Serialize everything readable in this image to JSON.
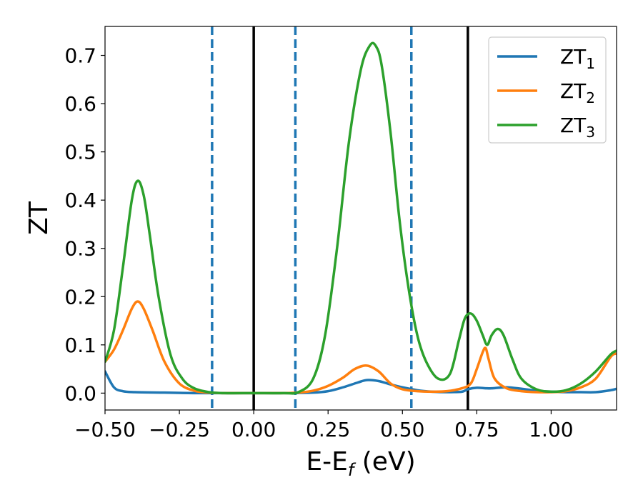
{
  "chart_data": {
    "type": "line",
    "title": "",
    "xlabel": "E-E",
    "xlabel_subscript": "f",
    "xlabel_suffix": " (eV)",
    "ylabel": "ZT",
    "xlim": [
      -0.5,
      1.22
    ],
    "ylim": [
      -0.035,
      0.76
    ],
    "grid": false,
    "legend_position": "top-right",
    "x_ticks": [
      {
        "value": -0.5,
        "label": "−0.50"
      },
      {
        "value": -0.25,
        "label": "−0.25"
      },
      {
        "value": 0.0,
        "label": "0.00"
      },
      {
        "value": 0.25,
        "label": "0.25"
      },
      {
        "value": 0.5,
        "label": "0.50"
      },
      {
        "value": 0.75,
        "label": "0.75"
      },
      {
        "value": 1.0,
        "label": "1.00"
      }
    ],
    "y_ticks": [
      {
        "value": 0.0,
        "label": "0.0"
      },
      {
        "value": 0.1,
        "label": "0.1"
      },
      {
        "value": 0.2,
        "label": "0.2"
      },
      {
        "value": 0.3,
        "label": "0.3"
      },
      {
        "value": 0.4,
        "label": "0.4"
      },
      {
        "value": 0.5,
        "label": "0.5"
      },
      {
        "value": 0.6,
        "label": "0.6"
      },
      {
        "value": 0.7,
        "label": "0.7"
      }
    ],
    "vertical_lines": [
      {
        "x": -0.14,
        "style": "dashed",
        "color": "#1f77b4"
      },
      {
        "x": 0.0,
        "style": "solid",
        "color": "#000000"
      },
      {
        "x": 0.14,
        "style": "dashed",
        "color": "#1f77b4"
      },
      {
        "x": 0.53,
        "style": "dashed",
        "color": "#1f77b4"
      },
      {
        "x": 0.72,
        "style": "solid",
        "color": "#000000"
      }
    ],
    "series": [
      {
        "name": "ZT",
        "subscript": "1",
        "color": "#1f77b4",
        "x": [
          -0.5,
          -0.47,
          -0.44,
          -0.4,
          -0.3,
          -0.2,
          -0.1,
          0.0,
          0.1,
          0.2,
          0.25,
          0.3,
          0.35,
          0.38,
          0.42,
          0.46,
          0.5,
          0.55,
          0.6,
          0.65,
          0.7,
          0.72,
          0.75,
          0.78,
          0.8,
          0.85,
          0.9,
          0.95,
          1.0,
          1.05,
          1.1,
          1.15,
          1.2,
          1.22
        ],
        "y": [
          0.045,
          0.012,
          0.004,
          0.002,
          0.001,
          0.0,
          0.0,
          0.0,
          0.0,
          0.001,
          0.004,
          0.012,
          0.022,
          0.027,
          0.025,
          0.018,
          0.012,
          0.006,
          0.003,
          0.002,
          0.003,
          0.008,
          0.011,
          0.01,
          0.01,
          0.012,
          0.009,
          0.005,
          0.003,
          0.002,
          0.002,
          0.002,
          0.006,
          0.009
        ]
      },
      {
        "name": "ZT",
        "subscript": "2",
        "color": "#ff7f0e",
        "x": [
          -0.5,
          -0.47,
          -0.44,
          -0.41,
          -0.39,
          -0.37,
          -0.34,
          -0.3,
          -0.25,
          -0.2,
          -0.15,
          -0.1,
          0.0,
          0.1,
          0.15,
          0.2,
          0.25,
          0.3,
          0.34,
          0.38,
          0.42,
          0.46,
          0.5,
          0.55,
          0.6,
          0.65,
          0.7,
          0.73,
          0.75,
          0.77,
          0.78,
          0.79,
          0.81,
          0.85,
          0.9,
          0.95,
          1.0,
          1.05,
          1.1,
          1.15,
          1.2,
          1.22
        ],
        "y": [
          0.065,
          0.09,
          0.13,
          0.175,
          0.19,
          0.175,
          0.13,
          0.065,
          0.02,
          0.005,
          0.001,
          0.0,
          0.0,
          0.0,
          0.001,
          0.005,
          0.015,
          0.032,
          0.05,
          0.057,
          0.045,
          0.02,
          0.008,
          0.004,
          0.003,
          0.004,
          0.01,
          0.02,
          0.05,
          0.085,
          0.093,
          0.07,
          0.03,
          0.01,
          0.004,
          0.002,
          0.002,
          0.004,
          0.012,
          0.03,
          0.075,
          0.082
        ]
      },
      {
        "name": "ZT",
        "subscript": "3",
        "color": "#2ca02c",
        "x": [
          -0.5,
          -0.47,
          -0.44,
          -0.41,
          -0.39,
          -0.37,
          -0.35,
          -0.32,
          -0.28,
          -0.24,
          -0.2,
          -0.15,
          -0.1,
          0.0,
          0.1,
          0.15,
          0.2,
          0.24,
          0.28,
          0.32,
          0.36,
          0.39,
          0.41,
          0.43,
          0.46,
          0.49,
          0.52,
          0.55,
          0.58,
          0.62,
          0.66,
          0.69,
          0.71,
          0.73,
          0.75,
          0.77,
          0.785,
          0.8,
          0.82,
          0.84,
          0.87,
          0.9,
          0.95,
          1.0,
          1.05,
          1.1,
          1.15,
          1.2,
          1.22
        ],
        "y": [
          0.065,
          0.13,
          0.26,
          0.4,
          0.44,
          0.41,
          0.33,
          0.2,
          0.08,
          0.03,
          0.01,
          0.002,
          0.0,
          0.0,
          0.0,
          0.002,
          0.03,
          0.12,
          0.3,
          0.52,
          0.67,
          0.72,
          0.72,
          0.68,
          0.54,
          0.36,
          0.22,
          0.12,
          0.065,
          0.03,
          0.04,
          0.11,
          0.155,
          0.165,
          0.15,
          0.12,
          0.1,
          0.12,
          0.133,
          0.12,
          0.07,
          0.03,
          0.008,
          0.003,
          0.006,
          0.02,
          0.045,
          0.08,
          0.088
        ]
      }
    ]
  }
}
